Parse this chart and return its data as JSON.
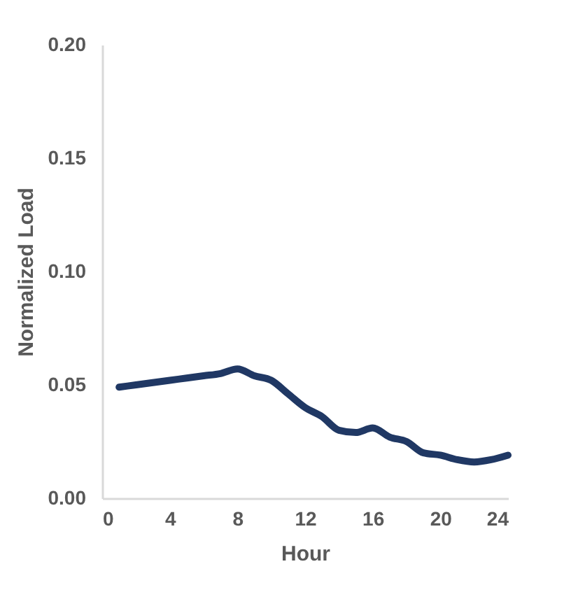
{
  "chart_data": {
    "type": "line",
    "xlabel": "Hour",
    "ylabel": "Normalized Load",
    "x": [
      1,
      2,
      3,
      4,
      5,
      6,
      7,
      8,
      9,
      10,
      11,
      12,
      13,
      14,
      15,
      16,
      17,
      18,
      19,
      20,
      21,
      22,
      23,
      24
    ],
    "series": [
      {
        "color": "#203864",
        "values": [
          0.049,
          0.05,
          0.051,
          0.052,
          0.053,
          0.054,
          0.055,
          0.057,
          0.054,
          0.052,
          0.046,
          0.04,
          0.036,
          0.03,
          0.029,
          0.031,
          0.027,
          0.025,
          0.02,
          0.019,
          0.017,
          0.016,
          0.017,
          0.019
        ]
      }
    ],
    "xlim": [
      0,
      24
    ],
    "xticks": [
      0,
      4,
      8,
      12,
      16,
      20,
      24
    ],
    "ylim": [
      0,
      0.2
    ],
    "yticks": [
      {
        "value": 0,
        "label": "0.00"
      },
      0.05,
      {
        "value": 0.1,
        "label": "0.10"
      },
      0.15,
      {
        "value": 0.2,
        "label": "0.20"
      }
    ],
    "grid": false,
    "marker": "none",
    "line_style": "solid"
  }
}
